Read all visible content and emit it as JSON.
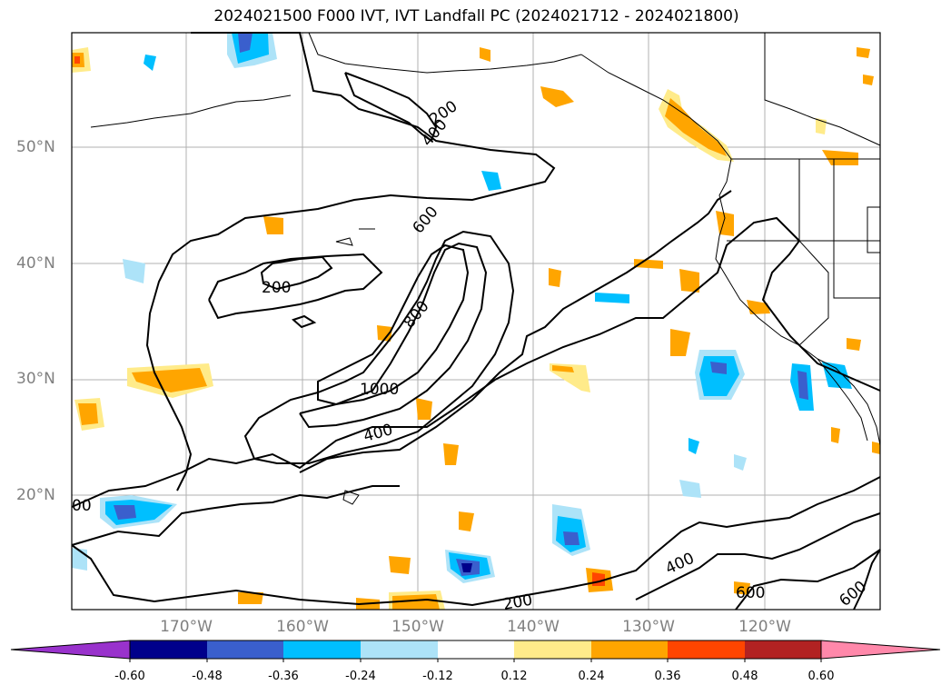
{
  "title": "2024021500 F000 IVT, IVT Landfall PC (2024021712 - 2024021800)",
  "lat_labels": [
    "50°N",
    "40°N",
    "30°N",
    "20°N"
  ],
  "lon_labels": [
    "170°W",
    "160°W",
    "150°W",
    "140°W",
    "130°W",
    "120°W"
  ],
  "contour_labels": [
    "200",
    "400",
    "600",
    "200",
    "800",
    "1000",
    "400",
    "400",
    "600",
    "600",
    "200",
    "00"
  ],
  "colorbar": {
    "ticks": [
      "-0.60",
      "-0.48",
      "-0.36",
      "-0.24",
      "-0.12",
      "0.12",
      "0.24",
      "0.36",
      "0.48",
      "0.60"
    ],
    "colors": [
      "#9932CC",
      "#00008B",
      "#3A5FCD",
      "#00BFFF",
      "#ADE3F8",
      "#FFFFFF",
      "#FFEB8A",
      "#FFA500",
      "#FF4500",
      "#B22222",
      "#FF88AA"
    ]
  }
}
